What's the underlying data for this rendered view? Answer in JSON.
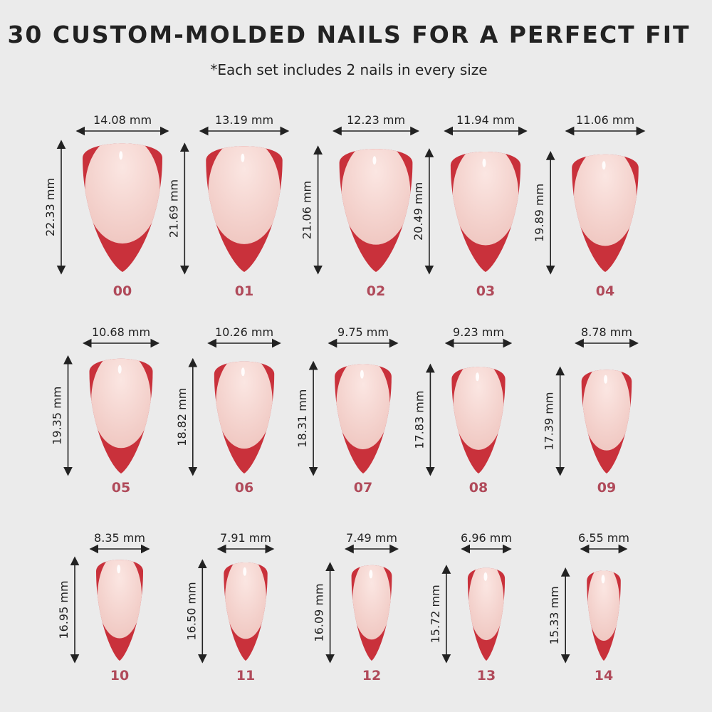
{
  "header": {
    "title": "30 CUSTOM-MOLDED NAILS FOR A PERFECT FIT",
    "subtitle": "*Each set includes 2 nails in every size"
  },
  "nails": [
    {
      "size": "00",
      "width": "14.08 mm",
      "height": "22.33 mm"
    },
    {
      "size": "01",
      "width": "13.19 mm",
      "height": "21.69 mm"
    },
    {
      "size": "02",
      "width": "12.23 mm",
      "height": "21.06 mm"
    },
    {
      "size": "03",
      "width": "11.94 mm",
      "height": "20.49 mm"
    },
    {
      "size": "04",
      "width": "11.06 mm",
      "height": "19.89 mm"
    },
    {
      "size": "05",
      "width": "10.68 mm",
      "height": "19.35 mm"
    },
    {
      "size": "06",
      "width": "10.26 mm",
      "height": "18.82 mm"
    },
    {
      "size": "07",
      "width": "9.75 mm",
      "height": "18.31 mm"
    },
    {
      "size": "08",
      "width": "9.23 mm",
      "height": "17.83 mm"
    },
    {
      "size": "09",
      "width": "8.78 mm",
      "height": "17.39 mm"
    },
    {
      "size": "10",
      "width": "8.35 mm",
      "height": "16.95 mm"
    },
    {
      "size": "11",
      "width": "7.91 mm",
      "height": "16.50 mm"
    },
    {
      "size": "12",
      "width": "7.49 mm",
      "height": "16.09 mm"
    },
    {
      "size": "13",
      "width": "6.96 mm",
      "height": "15.72 mm"
    },
    {
      "size": "14",
      "width": "6.55 mm",
      "height": "15.33 mm"
    }
  ]
}
